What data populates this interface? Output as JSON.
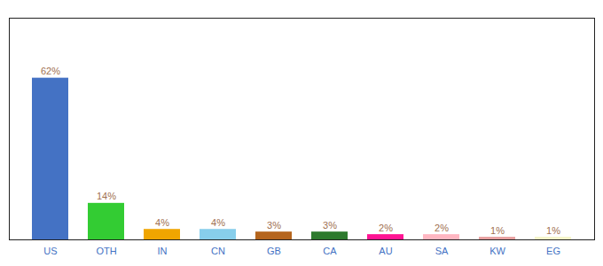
{
  "chart_data": {
    "type": "bar",
    "categories": [
      "US",
      "OTH",
      "IN",
      "CN",
      "GB",
      "CA",
      "AU",
      "SA",
      "KW",
      "EG"
    ],
    "values": [
      62,
      14,
      4,
      4,
      3,
      3,
      2,
      2,
      1,
      1
    ],
    "value_labels": [
      "62%",
      "14%",
      "4%",
      "4%",
      "3%",
      "3%",
      "2%",
      "2%",
      "1%",
      "1%"
    ],
    "colors": [
      "#4472c4",
      "#33cc33",
      "#f0a500",
      "#87ceeb",
      "#b5651d",
      "#2d7a2d",
      "#ff1493",
      "#ffb6c1",
      "#e8a0a0",
      "#f5f5c8"
    ],
    "ylim": [
      0,
      85
    ],
    "data_labels": true,
    "tick_labels": "x",
    "grid": false
  }
}
